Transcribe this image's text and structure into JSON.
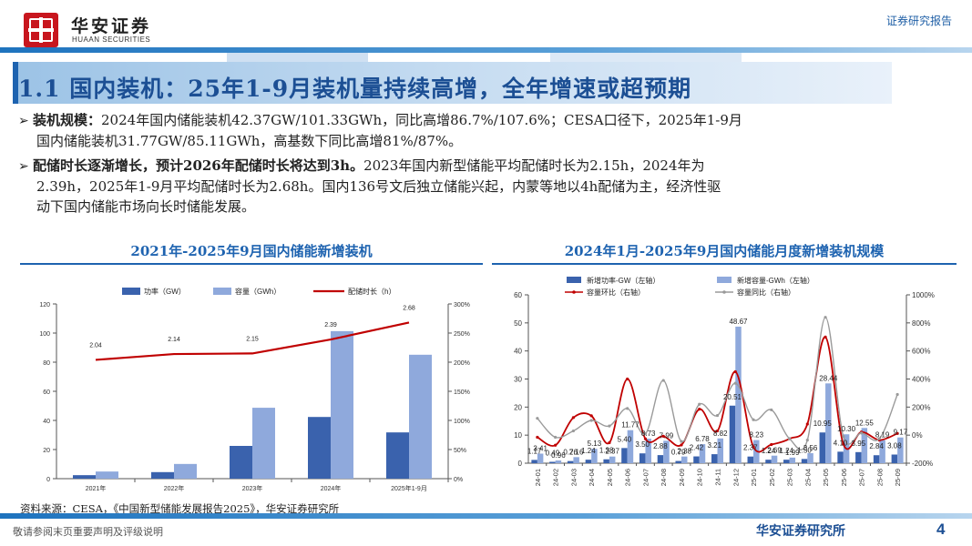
{
  "header": {
    "brand_cn": "华安证券",
    "brand_en": "HUAAN SECURITIES",
    "report_type": "证券研究报告"
  },
  "section_title": "1.1 国内装机：25年1-9月装机量持续高增，全年增速或超预期",
  "bullets": [
    {
      "lead": "装机规模：",
      "line1": "2024年国内储能装机42.37GW/101.33GWh，同比高增86.7%/107.6%；CESA口径下，2025年1-9月",
      "line2": "国内储能装机31.77GW/85.11GWh，高基数下同比高增81%/87%。"
    },
    {
      "lead": "配储时长逐渐增长，预计2026年配储时长将达到3h。",
      "line1": "2023年国内新型储能平均配储时长为2.15h，2024年为",
      "line2": "2.39h，2025年1-9月平均配储时长为2.68h。国内136号文后独立储能兴起，内蒙等地以4h配储为主，经济性驱",
      "line3": "动下国内储能市场向长时储能发展。"
    }
  ],
  "chart_titles": {
    "left": "2021年-2025年9月国内储能新增装机",
    "right": "2024年1月-2025年9月国内储能月度新增装机规模"
  },
  "chart_data": [
    {
      "type": "bar",
      "categories": [
        "2021年",
        "2022年",
        "2023年",
        "2024年",
        "2025年1-9月"
      ],
      "series": [
        {
          "name": "功率（GW）",
          "values": [
            2.4,
            4.5,
            22.5,
            42.37,
            31.77
          ],
          "color": "#3a62ad"
        },
        {
          "name": "容量（GWh）",
          "values": [
            4.9,
            10.1,
            48.7,
            101.33,
            85.11
          ],
          "color": "#8fa9dc"
        },
        {
          "name": "配储时长（h）",
          "values": [
            2.04,
            2.14,
            2.15,
            2.39,
            2.68
          ],
          "color": "#c00000",
          "type": "line",
          "axis": "right",
          "labels": [
            "2.04",
            "2.14",
            "2.15",
            "2.39",
            "2.68"
          ]
        }
      ],
      "ylim": [
        0,
        120
      ],
      "yticks": [
        "0",
        "20",
        "40",
        "60",
        "80",
        "100",
        "120"
      ],
      "y2ticks": [
        "0%",
        "50%",
        "100%",
        "150%",
        "200%",
        "250%",
        "300%"
      ],
      "legend": "top"
    },
    {
      "type": "bar",
      "categories": [
        "24-01",
        "24-02",
        "24-03",
        "24-04",
        "24-05",
        "24-06",
        "24-07",
        "24-08",
        "24-09",
        "24-10",
        "24-11",
        "24-12",
        "25-01",
        "25-02",
        "25-03",
        "25-04",
        "25-05",
        "25-06",
        "25-07",
        "25-08",
        "25-09"
      ],
      "series": [
        {
          "name": "新增功率-GW（左轴）",
          "values": [
            1.17,
            0.49,
            0.76,
            1.24,
            1.38,
            5.4,
            3.5,
            2.88,
            0.79,
            2.42,
            3.21,
            20.51,
            2.37,
            1.24,
            1.24,
            1.5,
            10.95,
            4.1,
            3.95,
            2.84,
            3.08
          ],
          "color": "#3a62ad",
          "labels": [
            "1.17",
            "0.49",
            "0.76",
            "1.24",
            "1.38",
            "5.40",
            "3.50",
            "2.88",
            "0.79",
            "2.42",
            "3.21",
            "20.51",
            "2.37",
            "1.24",
            "1.24",
            "1.50",
            "10.95",
            "4.10",
            "3.95",
            "2.84",
            "3.08"
          ]
        },
        {
          "name": "新增容量-GWh（左轴）",
          "values": [
            3.41,
            0.96,
            2.16,
            5.13,
            2.37,
            11.77,
            8.73,
            7.99,
            2.38,
            6.78,
            8.82,
            48.67,
            8.23,
            2.69,
            1.99,
            3.56,
            28.44,
            10.3,
            12.55,
            8.19,
            9.17
          ],
          "color": "#8fa9dc",
          "labels": [
            "3.41",
            "0.96",
            "2.16",
            "5.13",
            "2.37",
            "11.77",
            "8.73",
            "7.99",
            "2.38",
            "6.78",
            "8.82",
            "48.67",
            "8.23",
            "2.69",
            "1.99",
            "3.56",
            "28.44",
            "10.30",
            "12.55",
            "8.19",
            "9.17"
          ]
        },
        {
          "name": "容量环比（右轴）",
          "values": [
            -15,
            -72,
            125,
            138,
            -54,
            400,
            -26,
            -8,
            -70,
            185,
            30,
            452,
            -83,
            -67,
            -26,
            79,
            699,
            -64,
            22,
            -35,
            12
          ],
          "color": "#c00000",
          "type": "line",
          "axis": "right"
        },
        {
          "name": "容量同比（右轴）",
          "values": [
            120,
            -15,
            30,
            105,
            65,
            190,
            10,
            390,
            -45,
            220,
            140,
            370,
            110,
            180,
            -25,
            -35,
            840,
            -10,
            15,
            -25,
            290
          ],
          "color": "#9a9a9a",
          "type": "line",
          "axis": "right"
        }
      ],
      "ylim": [
        0,
        60
      ],
      "yticks": [
        "0",
        "10",
        "20",
        "30",
        "40",
        "50",
        "60"
      ],
      "y2lim": [
        -200,
        1000
      ],
      "y2ticks": [
        "-200%",
        "0%",
        "200%",
        "400%",
        "600%",
        "800%",
        "1000%"
      ],
      "legend": "top"
    }
  ],
  "source": "资料来源：CESA，《中国新型储能发展报告2025》，华安证券研究所",
  "footer": {
    "disclaimer": "敬请参阅末页重要声明及评级说明",
    "institute": "华安证券研究所",
    "page": "4"
  }
}
